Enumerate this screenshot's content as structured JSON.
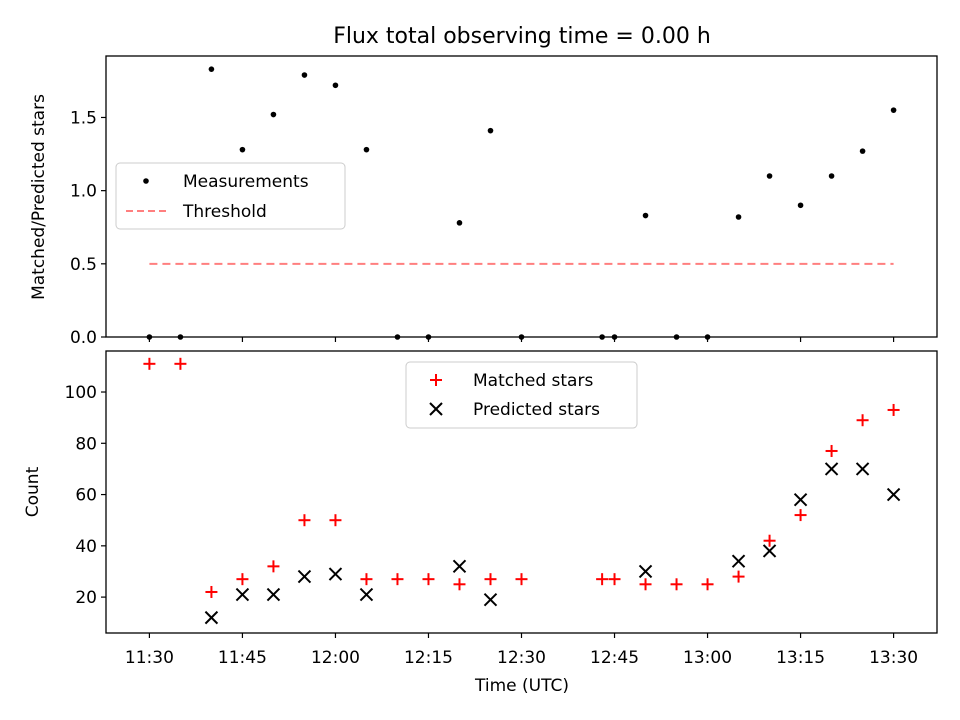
{
  "chart_data": [
    {
      "type": "scatter",
      "title": "Flux total observing time = 0.00 h",
      "ylabel": "Matched/Predicted stars",
      "xlabel": "",
      "ylim": [
        0,
        1.92
      ],
      "yticks": [
        0.0,
        0.5,
        1.0,
        1.5
      ],
      "ytick_labels": [
        "0.0",
        "0.5",
        "1.0",
        "1.5"
      ],
      "legend": {
        "placement": "center-left",
        "entries": [
          "Measurements",
          "Threshold"
        ]
      },
      "colors": {
        "measurements": "#000000",
        "threshold": "#ff7f7f"
      },
      "threshold": {
        "value": 0.5,
        "x_start": "11:30",
        "x_end": "13:30"
      },
      "series": [
        {
          "name": "Measurements",
          "x": [
            "11:30",
            "11:35",
            "11:40",
            "11:45",
            "11:50",
            "11:55",
            "12:00",
            "12:05",
            "12:10",
            "12:15",
            "12:20",
            "12:25",
            "12:30",
            "12:43",
            "12:45",
            "12:50",
            "12:55",
            "13:00",
            "13:05",
            "13:10",
            "13:15",
            "13:20",
            "13:25",
            "13:30"
          ],
          "y": [
            0.0,
            0.0,
            1.83,
            1.28,
            1.52,
            1.79,
            1.72,
            1.28,
            0.0,
            0.0,
            0.78,
            1.41,
            0.0,
            0.0,
            0.0,
            0.83,
            0.0,
            0.0,
            0.82,
            1.1,
            0.9,
            1.1,
            1.27,
            1.55
          ]
        }
      ]
    },
    {
      "type": "scatter",
      "title": "",
      "ylabel": "Count",
      "xlabel": "Time (UTC)",
      "ylim": [
        6,
        116
      ],
      "yticks": [
        20,
        40,
        60,
        80,
        100
      ],
      "ytick_labels": [
        "20",
        "40",
        "60",
        "80",
        "100"
      ],
      "xtick_labels": [
        "11:30",
        "11:45",
        "12:00",
        "12:15",
        "12:30",
        "12:45",
        "13:00",
        "13:15",
        "13:30"
      ],
      "legend": {
        "placement": "top-center",
        "entries": [
          "Matched stars",
          "Predicted stars"
        ]
      },
      "colors": {
        "matched": "#ff0000",
        "predicted": "#000000"
      },
      "series": [
        {
          "name": "Matched stars",
          "marker": "+",
          "x": [
            "11:30",
            "11:35",
            "11:40",
            "11:45",
            "11:50",
            "11:55",
            "12:00",
            "12:05",
            "12:10",
            "12:15",
            "12:20",
            "12:25",
            "12:30",
            "12:43",
            "12:45",
            "12:50",
            "12:55",
            "13:00",
            "13:05",
            "13:10",
            "13:15",
            "13:20",
            "13:25",
            "13:30"
          ],
          "y": [
            111,
            111,
            22,
            27,
            32,
            50,
            50,
            27,
            27,
            27,
            25,
            27,
            27,
            27,
            27,
            25,
            25,
            25,
            28,
            42,
            52,
            77,
            89,
            93
          ]
        },
        {
          "name": "Predicted stars",
          "marker": "x",
          "x": [
            "11:40",
            "11:45",
            "11:50",
            "11:55",
            "12:00",
            "12:05",
            "12:20",
            "12:25",
            "12:50",
            "13:05",
            "13:10",
            "13:15",
            "13:20",
            "13:25",
            "13:30"
          ],
          "y": [
            12,
            21,
            21,
            28,
            29,
            21,
            32,
            19,
            30,
            34,
            38,
            58,
            70,
            70,
            60
          ]
        }
      ]
    }
  ],
  "x_axis": {
    "start": "11:23",
    "end": "13:37"
  }
}
